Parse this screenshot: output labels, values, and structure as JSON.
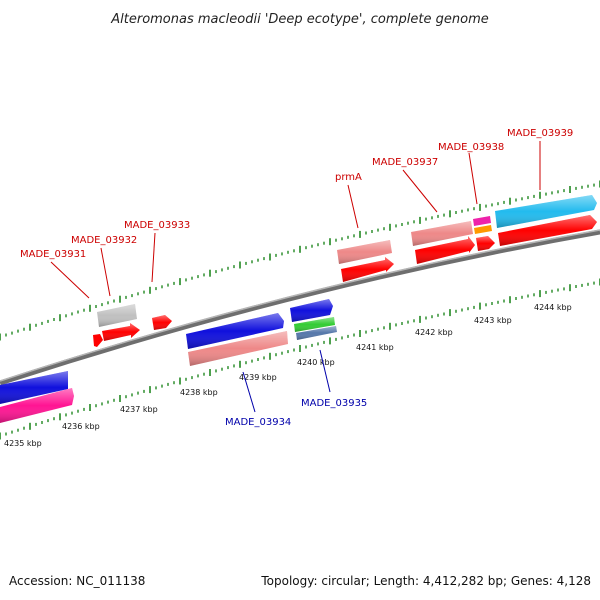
{
  "title": "Alteromonas macleodii 'Deep ecotype', complete genome",
  "footer": {
    "accession": "Accession: NC_011138",
    "summary": "Topology: circular; Length: 4,412,282 bp; Genes: 4,128"
  },
  "kbp_labels": [
    "4235 kbp",
    "4236 kbp",
    "4237 kbp",
    "4238 kbp",
    "4239 kbp",
    "4240 kbp",
    "4241 kbp",
    "4242 kbp",
    "4243 kbp",
    "4244 kbp"
  ],
  "gene_labels": [
    {
      "name": "MADE_03931",
      "strand": "forward"
    },
    {
      "name": "MADE_03932",
      "strand": "forward"
    },
    {
      "name": "MADE_03933",
      "strand": "forward"
    },
    {
      "name": "prmA",
      "strand": "forward"
    },
    {
      "name": "MADE_03937",
      "strand": "forward"
    },
    {
      "name": "MADE_03938",
      "strand": "forward"
    },
    {
      "name": "MADE_03939",
      "strand": "forward"
    },
    {
      "name": "MADE_03934",
      "strand": "reverse"
    },
    {
      "name": "MADE_03935",
      "strand": "reverse"
    }
  ],
  "colors": {
    "forward_label": "#cc0000",
    "reverse_label": "#0000aa",
    "forward_gene": "#ff0000",
    "forward_rna": "#ee8888",
    "reverse_gene": "#1010dd",
    "pink_feature": "#ff1493",
    "cyan_feature": "#22bbee",
    "green_feature": "#33cc33",
    "steelblue_feature": "#5577aa",
    "orange_feature": "#ff9900",
    "magenta_feature": "#ee22aa",
    "grey_feature": "#bbbbbb",
    "backbone": "#888888",
    "tick": "#228822"
  }
}
